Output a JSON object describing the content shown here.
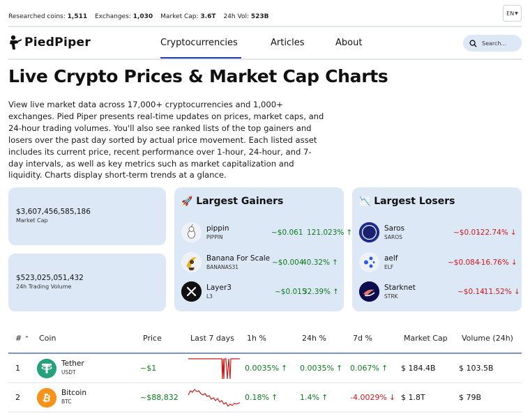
{
  "topbar": {
    "coins_label": "Researched coins:",
    "coins_value": "1,511",
    "exchanges_label": "Exchanges:",
    "exchanges_value": "1,030",
    "mcap_label": "Market Cap:",
    "mcap_value": "3.6T",
    "vol_label": "24h Vol:",
    "vol_value": "523B",
    "lang": "EN"
  },
  "nav": {
    "brand": "PiedPiper",
    "links": [
      "Cryptocurrencies",
      "Articles",
      "About"
    ],
    "search_placeholder": "Search..."
  },
  "hero": {
    "title": "Live Crypto Prices & Market Cap Charts",
    "intro": "View live market data across 17,000+ cryptocurrencies and 1,000+ exchanges. Pied Piper presents real-time updates on prices, market caps, and 24-hour trading volumes. You'll also see ranked lists of the top gainers and losers over the past day sorted by actual price movement. Each listed asset includes its current price, recent performance over 1-hour, 24-hour, and 7-day intervals, as well as key metrics such as market capitalization and liquidity. Charts display short-term trends at a glance."
  },
  "metrics": {
    "market_cap_value": "$3,607,456,585,186",
    "market_cap_label": "Market Cap",
    "volume_value": "$523,025,051,432",
    "volume_label": "24h Trading Volume"
  },
  "gainers": {
    "title": "Largest Gainers",
    "icon": "rocket-icon",
    "items": [
      {
        "name": "pippin",
        "symbol": "PIPPIN",
        "price": "~$0.061",
        "pct": "121.023%"
      },
      {
        "name": "Banana For Scale",
        "symbol": "BANANAS31",
        "price": "~$0.004",
        "pct": "40.32%"
      },
      {
        "name": "Layer3",
        "symbol": "L3",
        "price": "~$0.015",
        "pct": "32.39%"
      }
    ]
  },
  "losers": {
    "title": "Largest Losers",
    "icon": "chart-down-icon",
    "items": [
      {
        "name": "Saros",
        "symbol": "SAROS",
        "price": "~$0.01",
        "pct": "-22.74%"
      },
      {
        "name": "aelf",
        "symbol": "ELF",
        "price": "~$0.084",
        "pct": "-16.76%"
      },
      {
        "name": "Starknet",
        "symbol": "STRK",
        "price": "~$0.14",
        "pct": "-11.52%"
      }
    ]
  },
  "table": {
    "headers": [
      "#",
      "Coin",
      "Price",
      "Last 7 days",
      "1h %",
      "24h %",
      "7d %",
      "Market Cap",
      "Volume (24h)"
    ],
    "rows": [
      {
        "rank": "1",
        "name": "Tether",
        "symbol": "USDT",
        "price": "~$1",
        "h1": "0.0035%",
        "h24": "0.0035%",
        "d7": "0.067%",
        "mcap": "$ 184.4B",
        "vol": "$ 103.5B"
      },
      {
        "rank": "2",
        "name": "Bitcoin",
        "symbol": "BTC",
        "price": "~$88,832",
        "h1": "0.18%",
        "h24": "1.4%",
        "d7": "-4.0029%",
        "mcap": "$ 1.8T",
        "vol": "$ 79B"
      }
    ]
  },
  "colors": {
    "accent": "#1b3fa6",
    "card_bg": "#dce8f5",
    "positive": "#0f7b1f",
    "negative": "#cc1a1a",
    "tether": "#26a17b",
    "bitcoin": "#f7931a"
  }
}
